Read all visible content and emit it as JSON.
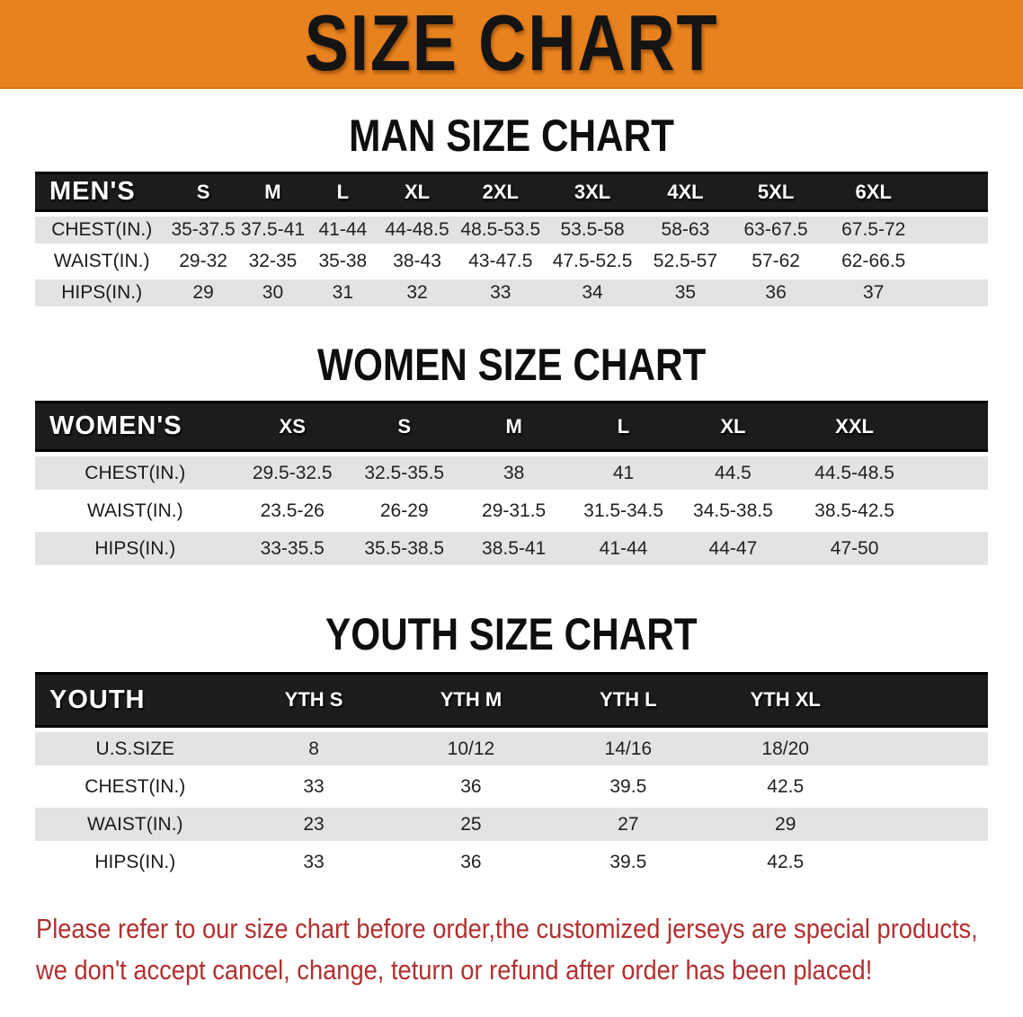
{
  "banner": {
    "title": "SIZE CHART"
  },
  "colors": {
    "banner_bg": "#E8821E",
    "table_header_bg": "#1C1C1C",
    "row_stripe": "#E3E3E3",
    "disclaimer_red": "#B23030"
  },
  "sections": {
    "men": {
      "heading": "MAN SIZE CHART"
    },
    "women": {
      "heading": "WOMEN SIZE CHART"
    },
    "youth": {
      "heading": "YOUTH SIZE CHART"
    }
  },
  "tables": {
    "men": {
      "corner_label": "MEN'S",
      "columns": [
        "S",
        "M",
        "L",
        "XL",
        "2XL",
        "3XL",
        "4XL",
        "5XL",
        "6XL"
      ],
      "rows": [
        {
          "label": "CHEST(IN.)",
          "values": [
            "35-37.5",
            "37.5-41",
            "41-44",
            "44-48.5",
            "48.5-53.5",
            "53.5-58",
            "58-63",
            "63-67.5",
            "67.5-72"
          ]
        },
        {
          "label": "WAIST(IN.)",
          "values": [
            "29-32",
            "32-35",
            "35-38",
            "38-43",
            "43-47.5",
            "47.5-52.5",
            "52.5-57",
            "57-62",
            "62-66.5"
          ]
        },
        {
          "label": "HIPS(IN.)",
          "values": [
            "29",
            "30",
            "31",
            "32",
            "33",
            "34",
            "35",
            "36",
            "37"
          ]
        }
      ]
    },
    "women": {
      "corner_label": "WOMEN'S",
      "columns": [
        "XS",
        "S",
        "M",
        "L",
        "XL",
        "XXL"
      ],
      "rows": [
        {
          "label": "CHEST(IN.)",
          "values": [
            "29.5-32.5",
            "32.5-35.5",
            "38",
            "41",
            "44.5",
            "44.5-48.5"
          ]
        },
        {
          "label": "WAIST(IN.)",
          "values": [
            "23.5-26",
            "26-29",
            "29-31.5",
            "31.5-34.5",
            "34.5-38.5",
            "38.5-42.5"
          ]
        },
        {
          "label": "HIPS(IN.)",
          "values": [
            "33-35.5",
            "35.5-38.5",
            "38.5-41",
            "41-44",
            "44-47",
            "47-50"
          ]
        }
      ]
    },
    "youth": {
      "corner_label": "YOUTH",
      "columns": [
        "YTH S",
        "YTH M",
        "YTH L",
        "YTH XL"
      ],
      "rows": [
        {
          "label": "U.S.SIZE",
          "values": [
            "8",
            "10/12",
            "14/16",
            "18/20"
          ]
        },
        {
          "label": "CHEST(IN.)",
          "values": [
            "33",
            "36",
            "39.5",
            "42.5"
          ]
        },
        {
          "label": "WAIST(IN.)",
          "values": [
            "23",
            "25",
            "27",
            "29"
          ]
        },
        {
          "label": "HIPS(IN.)",
          "values": [
            "33",
            "36",
            "39.5",
            "42.5"
          ]
        }
      ]
    }
  },
  "disclaimer": {
    "line1": "Please refer to our size chart before order,the customized jerseys are special products,",
    "line2": "we don't accept cancel, change, teturn or refund after order has been placed!"
  }
}
